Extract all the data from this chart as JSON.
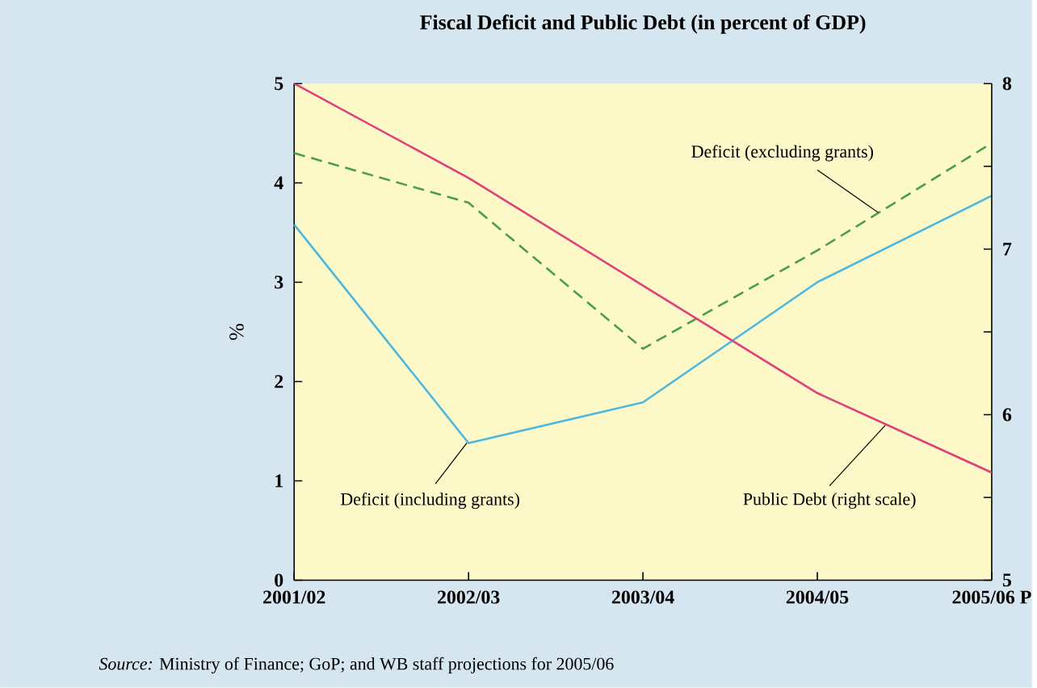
{
  "chart_data": {
    "type": "line",
    "title": "Fiscal Deficit and Public Debt (in percent of GDP)",
    "categories": [
      "2001/02",
      "2002/03",
      "2003/04",
      "2004/05",
      "2005/06 P"
    ],
    "ylabel": "%",
    "ylim": [
      0,
      5
    ],
    "yticks": [
      0,
      1,
      2,
      3,
      4,
      5
    ],
    "y2lim": [
      5,
      8
    ],
    "y2ticks": [
      5,
      {
        "value": 5.5,
        "label": null
      },
      6,
      {
        "value": 6.5,
        "label": null
      },
      7,
      {
        "value": 7.5,
        "label": null
      },
      8
    ],
    "series": [
      {
        "name": "Deficit (including grants)",
        "color": "#4cb8e0",
        "values": [
          3.58,
          1.38,
          1.79,
          3.0,
          3.87
        ]
      },
      {
        "name": "Deficit (excluding grants)",
        "color": "#4a9e4a",
        "line_style": "dashed",
        "values": [
          4.3,
          3.8,
          2.33,
          3.32,
          4.4
        ]
      },
      {
        "name": "Public Debt (right scale)",
        "color": "#e0407a",
        "axis": "y2",
        "values": [
          8.0,
          7.43,
          6.78,
          6.13,
          5.65
        ]
      }
    ],
    "marker": "none",
    "legend": false,
    "grid": false,
    "annotations": [
      "*Source:* Ministry of Finance; GoP; and WB staff projections for 2005/06"
    ]
  }
}
